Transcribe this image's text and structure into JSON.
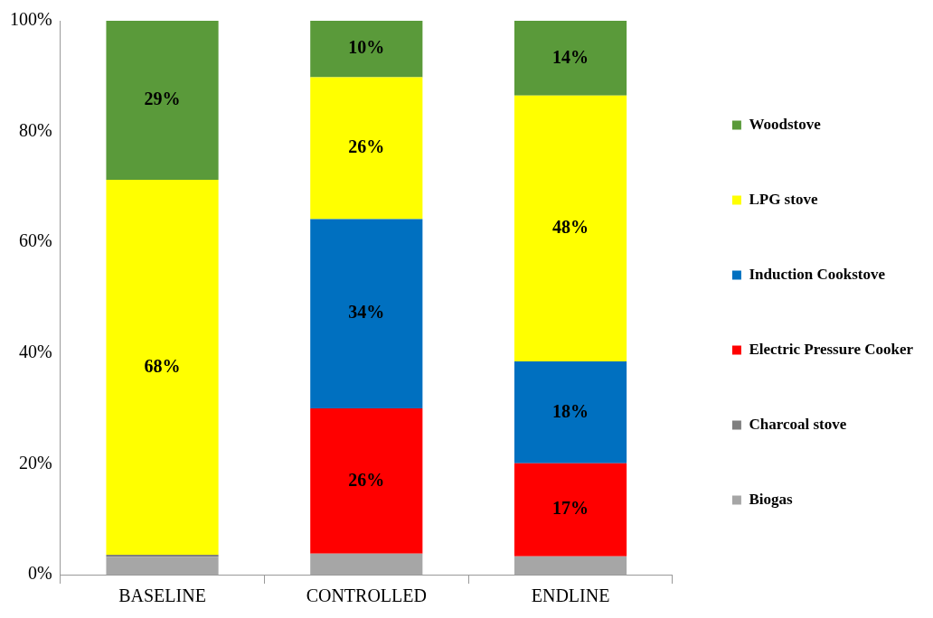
{
  "chart_data": {
    "type": "bar",
    "stacked": true,
    "categories": [
      "BASELINE",
      "CONTROLLED",
      "ENDLINE"
    ],
    "series": [
      {
        "name": "Biogas",
        "color": "#a6a6a6",
        "values": [
          3.2,
          3.8,
          3.3
        ]
      },
      {
        "name": "Charcoal stove",
        "color": "#7f7f7f",
        "values": [
          0.4,
          0,
          0
        ]
      },
      {
        "name": "Electric Pressure Cooker",
        "color": "#ff0000",
        "values": [
          0,
          26.2,
          16.8
        ],
        "value_labels": [
          null,
          "26%",
          "17%"
        ]
      },
      {
        "name": "Induction Cookstove",
        "color": "#0070c0",
        "values": [
          0,
          34.2,
          18.4
        ],
        "value_labels": [
          null,
          "34%",
          "18%"
        ]
      },
      {
        "name": "LPG stove",
        "color": "#ffff00",
        "values": [
          67.7,
          25.6,
          48.0
        ],
        "value_labels": [
          "68%",
          "26%",
          "48%"
        ]
      },
      {
        "name": "Woodstove",
        "color": "#5a9a3a",
        "values": [
          28.7,
          10.2,
          13.5
        ],
        "value_labels": [
          "29%",
          "10%",
          "14%"
        ]
      }
    ],
    "ylim": [
      0,
      100
    ],
    "yticks": [
      {
        "value": 0,
        "label": "0%"
      },
      {
        "value": 20,
        "label": "20%"
      },
      {
        "value": 40,
        "label": "40%"
      },
      {
        "value": 60,
        "label": "60%"
      },
      {
        "value": 80,
        "label": "80%"
      },
      {
        "value": 100,
        "label": "100%"
      }
    ],
    "grid": false,
    "legend": "right"
  }
}
